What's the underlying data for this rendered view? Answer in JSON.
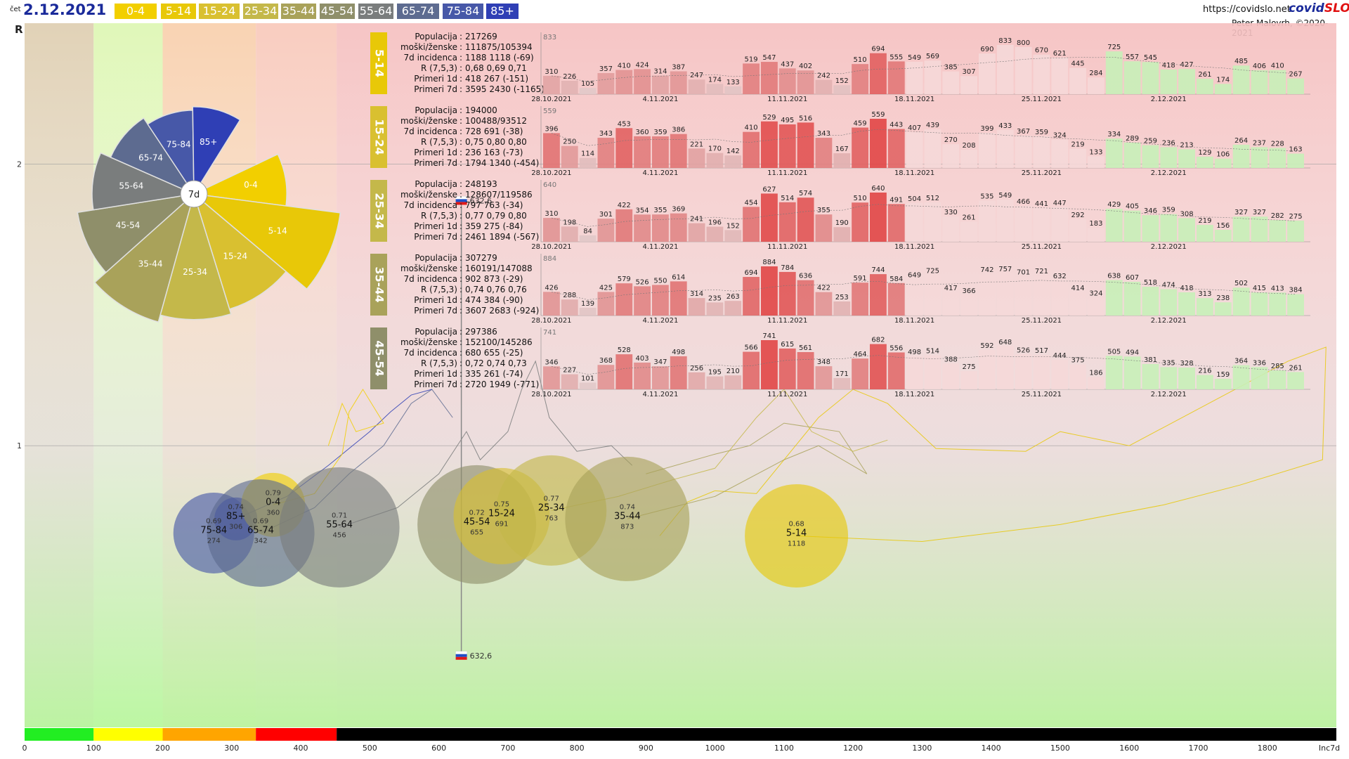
{
  "header": {
    "day": "čet",
    "date": "2.12.2021",
    "url": "https://covidslo.net",
    "brand_a": "covid",
    "brand_b": "SLO",
    "author": "Peter Malovrh, ©2020-2021"
  },
  "colors": {
    "0-4": "#f2cf00",
    "5-14": "#e8c808",
    "15-24": "#d9c030",
    "25-34": "#c4b84a",
    "35-44": "#a9a25a",
    "45-54": "#8f8f6a",
    "55-64": "#7a7d7d",
    "65-74": "#5d6b90",
    "75-84": "#4758a8",
    "85+": "#2f3fb5",
    "wedge_7d": "#ffffff"
  },
  "chart_data": [
    {
      "type": "scatter",
      "title": "",
      "ylabel": "R",
      "xlabel": "Inc7d",
      "xlim": [
        0,
        1900
      ],
      "ylim": [
        0,
        2.5
      ],
      "x_ticks": [
        "0",
        "100",
        "200",
        "300",
        "400",
        "500",
        "600",
        "700",
        "800",
        "900",
        "1000",
        "1100",
        "1200",
        "1300",
        "1400",
        "1500",
        "1600",
        "1700",
        "1800",
        "Inc7d"
      ],
      "y_ticks": [
        "2",
        "1"
      ],
      "bands": [
        {
          "from": 0,
          "to": 100,
          "color": "#22ee22"
        },
        {
          "from": 100,
          "to": 200,
          "color": "#ffff00"
        },
        {
          "from": 200,
          "to": 335,
          "color": "#ffa500"
        },
        {
          "from": 335,
          "to": 452,
          "color": "#ff0000"
        },
        {
          "from": 452,
          "to": 1900,
          "color": "#000000"
        }
      ],
      "legend": [
        "0-4",
        "5-14",
        "15-24",
        "25-34",
        "35-44",
        "45-54",
        "55-64",
        "65-74",
        "75-84",
        "85+"
      ],
      "slovenia_marker": {
        "x": 632.6,
        "label": "632,6"
      },
      "points": [
        {
          "group": "75-84",
          "x": 274,
          "r": 0.69,
          "r_label": "0.69",
          "x_label": "274"
        },
        {
          "group": "85+",
          "x": 306,
          "r": 0.74,
          "r_label": "0.74",
          "x_label": "306"
        },
        {
          "group": "0-4",
          "x": 360,
          "r": 0.79,
          "r_label": "0.79",
          "x_label": "360"
        },
        {
          "group": "65-74",
          "x": 342,
          "r": 0.69,
          "r_label": "0.69",
          "x_label": "342"
        },
        {
          "group": "55-64",
          "x": 456,
          "r": 0.71,
          "r_label": "0.71",
          "x_label": "456"
        },
        {
          "group": "45-54",
          "x": 655,
          "r": 0.72,
          "r_label": "0.72",
          "x_label": "655"
        },
        {
          "group": "15-24",
          "x": 691,
          "r": 0.75,
          "r_label": "0.75",
          "x_label": "691"
        },
        {
          "group": "25-34",
          "x": 763,
          "r": 0.77,
          "r_label": "0.77",
          "x_label": "763"
        },
        {
          "group": "35-44",
          "x": 873,
          "r": 0.74,
          "r_label": "0.74",
          "x_label": "873"
        },
        {
          "group": "5-14",
          "x": 1118,
          "r": 0.68,
          "r_label": "0.68",
          "x_label": "1118"
        }
      ]
    },
    {
      "type": "pie",
      "center_label": "7d",
      "slices": [
        {
          "label": "0-4",
          "value": 360
        },
        {
          "label": "5-14",
          "value": 1118
        },
        {
          "label": "15-24",
          "value": 691
        },
        {
          "label": "25-34",
          "value": 763
        },
        {
          "label": "35-44",
          "value": 873
        },
        {
          "label": "45-54",
          "value": 655
        },
        {
          "label": "55-64",
          "value": 456
        },
        {
          "label": "65-74",
          "value": 342
        },
        {
          "label": "75-84",
          "value": 274
        },
        {
          "label": "85+",
          "value": 306
        }
      ]
    },
    {
      "type": "bar",
      "group": "5-14",
      "info": {
        "Populacija": "217269",
        "moški/ženske": "111875/105394",
        "7d incidenca": "1188 1118 (-69)",
        "R (7,5,3)": "0,68 0,69 0,71",
        "Primeri 1d": "418 267 (-151)",
        "Primeri 7d": "3595 2430 (-1165)"
      },
      "ymax_label": "833",
      "date_ticks": [
        "28.10.2021",
        "4.11.2021",
        "11.11.2021",
        "18.11.2021",
        "25.11.2021",
        "2.12.2021"
      ],
      "values": [
        310,
        226,
        105,
        357,
        410,
        424,
        314,
        387,
        247,
        174,
        133,
        519,
        547,
        437,
        402,
        242,
        152,
        510,
        694,
        555,
        549,
        569,
        385,
        307,
        690,
        833,
        800,
        670,
        621,
        445,
        284,
        725,
        557,
        545,
        418,
        427,
        261,
        174,
        485,
        406,
        410,
        267
      ]
    },
    {
      "type": "bar",
      "group": "15-24",
      "info": {
        "Populacija": "194000",
        "moški/ženske": "100488/93512",
        "7d incidenca": "728 691 (-38)",
        "R (7,5,3)": "0,75 0,80 0,80",
        "Primeri 1d": "236 163 (-73)",
        "Primeri 7d": "1794 1340 (-454)"
      },
      "ymax_label": "559",
      "date_ticks": [
        "28.10.2021",
        "4.11.2021",
        "11.11.2021",
        "18.11.2021",
        "25.11.2021",
        "2.12.2021"
      ],
      "values": [
        396,
        250,
        114,
        343,
        453,
        360,
        359,
        386,
        221,
        170,
        142,
        410,
        529,
        495,
        516,
        343,
        167,
        459,
        559,
        443,
        407,
        439,
        270,
        208,
        399,
        433,
        367,
        359,
        324,
        219,
        133,
        334,
        289,
        259,
        236,
        213,
        129,
        106,
        264,
        237,
        228,
        163
      ]
    },
    {
      "type": "bar",
      "group": "25-34",
      "info": {
        "Populacija": "248193",
        "moški/ženske": "128607/119586",
        "7d incidenca": "797 763 (-34)",
        "R (7,5,3)": "0,77 0,79 0,80",
        "Primeri 1d": "359 275 (-84)",
        "Primeri 7d": "2461 1894 (-567)"
      },
      "ymax_label": "640",
      "date_ticks": [
        "28.10.2021",
        "4.11.2021",
        "11.11.2021",
        "18.11.2021",
        "25.11.2021",
        "2.12.2021"
      ],
      "values": [
        310,
        198,
        84,
        301,
        422,
        354,
        355,
        369,
        241,
        196,
        152,
        454,
        627,
        514,
        574,
        355,
        190,
        510,
        640,
        491,
        504,
        512,
        330,
        261,
        535,
        549,
        466,
        441,
        447,
        292,
        183,
        429,
        405,
        346,
        359,
        308,
        219,
        156,
        327,
        327,
        282,
        275
      ]
    },
    {
      "type": "bar",
      "group": "35-44",
      "info": {
        "Populacija": "307279",
        "moški/ženske": "160191/147088",
        "7d incidenca": "902 873 (-29)",
        "R (7,5,3)": "0,74 0,76 0,76",
        "Primeri 1d": "474 384 (-90)",
        "Primeri 7d": "3607 2683 (-924)"
      },
      "ymax_label": "884",
      "date_ticks": [
        "28.10.2021",
        "4.11.2021",
        "11.11.2021",
        "18.11.2021",
        "25.11.2021",
        "2.12.2021"
      ],
      "values": [
        426,
        288,
        139,
        425,
        579,
        526,
        550,
        614,
        314,
        235,
        263,
        694,
        884,
        784,
        636,
        422,
        253,
        591,
        744,
        584,
        649,
        725,
        417,
        366,
        742,
        757,
        701,
        721,
        632,
        414,
        324,
        638,
        607,
        518,
        474,
        418,
        313,
        238,
        502,
        415,
        413,
        384
      ]
    },
    {
      "type": "bar",
      "group": "45-54",
      "info": {
        "Populacija": "297386",
        "moški/ženske": "152100/145286",
        "7d incidenca": "680 655 (-25)",
        "R (7,5,3)": "0,72 0,74 0,73",
        "Primeri 1d": "335 261 (-74)",
        "Primeri 7d": "2720 1949 (-771)"
      },
      "ymax_label": "741",
      "date_ticks": [
        "28.10.2021",
        "4.11.2021",
        "11.11.2021",
        "18.11.2021",
        "25.11.2021",
        "2.12.2021"
      ],
      "values": [
        346,
        227,
        101,
        368,
        528,
        403,
        347,
        498,
        256,
        195,
        210,
        566,
        741,
        615,
        561,
        348,
        171,
        464,
        682,
        556,
        498,
        514,
        388,
        275,
        592,
        648,
        526,
        517,
        444,
        375,
        186,
        505,
        494,
        381,
        335,
        328,
        216,
        159,
        364,
        336,
        285,
        261
      ]
    }
  ]
}
